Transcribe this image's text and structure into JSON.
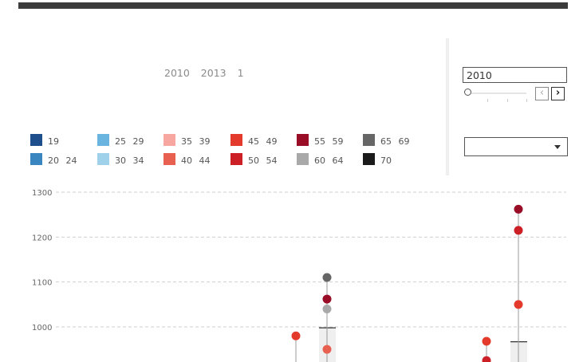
{
  "header": {
    "subtitle": "2010 2013 1"
  },
  "controls": {
    "year_value": "2010",
    "prev_glyph": "‹",
    "next_glyph": "›",
    "dropdown_value": ""
  },
  "legend": {
    "items": [
      {
        "label": "19",
        "color": "#1f4e8c"
      },
      {
        "label": "20 24",
        "color": "#3a86c0"
      },
      {
        "label": "25 29",
        "color": "#6ab5e0"
      },
      {
        "label": "30 34",
        "color": "#9fd2ea"
      },
      {
        "label": "35 39",
        "color": "#f7a6a0"
      },
      {
        "label": "40 44",
        "color": "#e8604f"
      },
      {
        "label": "45 49",
        "color": "#e43a2c"
      },
      {
        "label": "50 54",
        "color": "#cc1f26"
      },
      {
        "label": "55 59",
        "color": "#990d27"
      },
      {
        "label": "60 64",
        "color": "#a9a9a9"
      },
      {
        "label": "65 69",
        "color": "#666666"
      },
      {
        "label": "70",
        "color": "#1b1b1b"
      }
    ]
  },
  "chart_data": {
    "type": "scatter",
    "title": "",
    "xlabel": "",
    "ylabel": "",
    "ylim": [
      900,
      1300
    ],
    "yticks": [
      1000,
      1100,
      1200,
      1300
    ],
    "grid": true,
    "groups": [
      {
        "points": [
          {
            "age": "45 49",
            "value": 980
          }
        ],
        "range_low": 900,
        "range_high": 980
      },
      {
        "points": [
          {
            "age": "65 69",
            "value": 1110
          },
          {
            "age": "55 59",
            "value": 1062
          },
          {
            "age": "60 64",
            "value": 1040
          },
          {
            "age": "40 44",
            "value": 950
          }
        ],
        "range_low": 900,
        "range_high": 1110,
        "box_top": 998
      },
      {
        "points": [
          {
            "age": "45 49",
            "value": 968
          },
          {
            "age": "50 54",
            "value": 925
          }
        ],
        "range_low": 900,
        "range_high": 968
      },
      {
        "points": [
          {
            "age": "55 59",
            "value": 1262
          },
          {
            "age": "50 54",
            "value": 1215
          },
          {
            "age": "45 49",
            "value": 1050
          }
        ],
        "range_low": 900,
        "range_high": 1262,
        "box_top": 967
      }
    ]
  }
}
